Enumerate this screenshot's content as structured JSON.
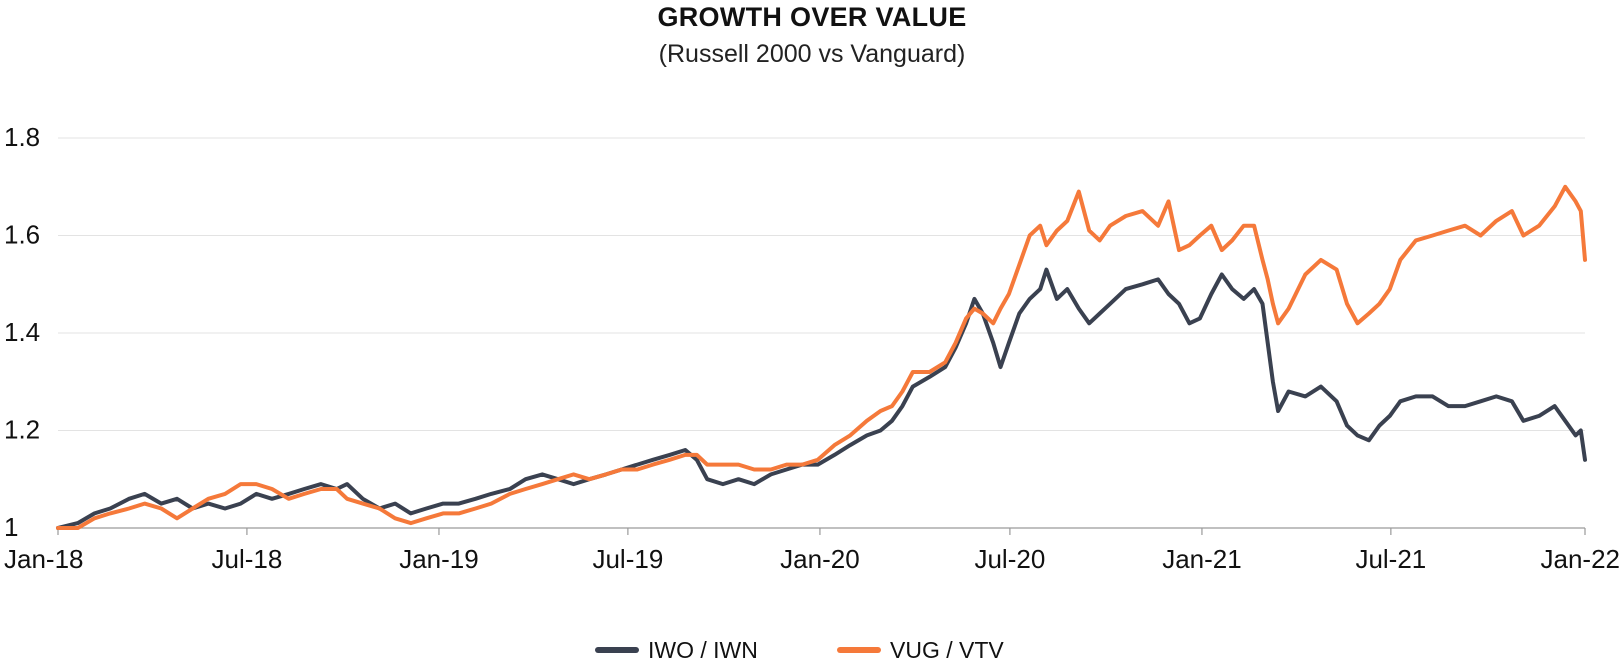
{
  "chart_data": {
    "type": "line",
    "title": "GROWTH OVER VALUE",
    "subtitle": "(Russell 2000 vs Vanguard)",
    "xlabel": "",
    "ylabel": "",
    "x_ticks": [
      "Jan-18",
      "Jul-18",
      "Jan-19",
      "Jul-19",
      "Jan-20",
      "Jul-20",
      "Jan-21",
      "Jul-21",
      "Jan-22"
    ],
    "y_ticks": [
      "1",
      "1.2",
      "1.4",
      "1.6",
      "1.8"
    ],
    "ylim": [
      1.0,
      1.8
    ],
    "xlim": [
      "2018-01-01",
      "2022-01-03"
    ],
    "grid": "horizontal",
    "legend_position": "bottom-center",
    "series": [
      {
        "name": "IWO / IWN",
        "color": "#3a4150",
        "points": [
          [
            "2018-01-01",
            1.0
          ],
          [
            "2018-01-20",
            1.01
          ],
          [
            "2018-02-05",
            1.03
          ],
          [
            "2018-02-20",
            1.04
          ],
          [
            "2018-03-10",
            1.06
          ],
          [
            "2018-03-25",
            1.07
          ],
          [
            "2018-04-10",
            1.05
          ],
          [
            "2018-04-25",
            1.06
          ],
          [
            "2018-05-10",
            1.04
          ],
          [
            "2018-05-25",
            1.05
          ],
          [
            "2018-06-10",
            1.04
          ],
          [
            "2018-06-25",
            1.05
          ],
          [
            "2018-07-10",
            1.07
          ],
          [
            "2018-07-25",
            1.06
          ],
          [
            "2018-08-10",
            1.07
          ],
          [
            "2018-08-25",
            1.08
          ],
          [
            "2018-09-10",
            1.09
          ],
          [
            "2018-09-25",
            1.08
          ],
          [
            "2018-10-05",
            1.09
          ],
          [
            "2018-10-20",
            1.06
          ],
          [
            "2018-11-05",
            1.04
          ],
          [
            "2018-11-20",
            1.05
          ],
          [
            "2018-12-05",
            1.03
          ],
          [
            "2018-12-20",
            1.04
          ],
          [
            "2019-01-05",
            1.05
          ],
          [
            "2019-01-20",
            1.05
          ],
          [
            "2019-02-05",
            1.06
          ],
          [
            "2019-02-20",
            1.07
          ],
          [
            "2019-03-10",
            1.08
          ],
          [
            "2019-03-25",
            1.1
          ],
          [
            "2019-04-10",
            1.11
          ],
          [
            "2019-04-25",
            1.1
          ],
          [
            "2019-05-10",
            1.09
          ],
          [
            "2019-05-25",
            1.1
          ],
          [
            "2019-06-10",
            1.11
          ],
          [
            "2019-06-25",
            1.12
          ],
          [
            "2019-07-10",
            1.13
          ],
          [
            "2019-07-25",
            1.14
          ],
          [
            "2019-08-10",
            1.15
          ],
          [
            "2019-08-25",
            1.16
          ],
          [
            "2019-09-05",
            1.14
          ],
          [
            "2019-09-15",
            1.1
          ],
          [
            "2019-09-30",
            1.09
          ],
          [
            "2019-10-15",
            1.1
          ],
          [
            "2019-10-30",
            1.09
          ],
          [
            "2019-11-15",
            1.11
          ],
          [
            "2019-11-30",
            1.12
          ],
          [
            "2019-12-15",
            1.13
          ],
          [
            "2019-12-30",
            1.13
          ],
          [
            "2020-01-15",
            1.15
          ],
          [
            "2020-01-30",
            1.17
          ],
          [
            "2020-02-15",
            1.19
          ],
          [
            "2020-02-28",
            1.2
          ],
          [
            "2020-03-10",
            1.22
          ],
          [
            "2020-03-20",
            1.25
          ],
          [
            "2020-03-30",
            1.29
          ],
          [
            "2020-04-15",
            1.31
          ],
          [
            "2020-04-30",
            1.33
          ],
          [
            "2020-05-10",
            1.37
          ],
          [
            "2020-05-20",
            1.42
          ],
          [
            "2020-05-28",
            1.47
          ],
          [
            "2020-06-05",
            1.44
          ],
          [
            "2020-06-15",
            1.38
          ],
          [
            "2020-06-22",
            1.33
          ],
          [
            "2020-06-30",
            1.38
          ],
          [
            "2020-07-10",
            1.44
          ],
          [
            "2020-07-20",
            1.47
          ],
          [
            "2020-07-30",
            1.49
          ],
          [
            "2020-08-05",
            1.53
          ],
          [
            "2020-08-15",
            1.47
          ],
          [
            "2020-08-25",
            1.49
          ],
          [
            "2020-09-05",
            1.45
          ],
          [
            "2020-09-15",
            1.42
          ],
          [
            "2020-09-25",
            1.44
          ],
          [
            "2020-10-05",
            1.46
          ],
          [
            "2020-10-20",
            1.49
          ],
          [
            "2020-11-05",
            1.5
          ],
          [
            "2020-11-20",
            1.51
          ],
          [
            "2020-11-30",
            1.48
          ],
          [
            "2020-12-10",
            1.46
          ],
          [
            "2020-12-20",
            1.42
          ],
          [
            "2020-12-30",
            1.43
          ],
          [
            "2021-01-10",
            1.48
          ],
          [
            "2021-01-20",
            1.52
          ],
          [
            "2021-01-30",
            1.49
          ],
          [
            "2021-02-10",
            1.47
          ],
          [
            "2021-02-20",
            1.49
          ],
          [
            "2021-02-28",
            1.46
          ],
          [
            "2021-03-05",
            1.38
          ],
          [
            "2021-03-10",
            1.3
          ],
          [
            "2021-03-15",
            1.24
          ],
          [
            "2021-03-25",
            1.28
          ],
          [
            "2021-04-10",
            1.27
          ],
          [
            "2021-04-25",
            1.29
          ],
          [
            "2021-05-10",
            1.26
          ],
          [
            "2021-05-20",
            1.21
          ],
          [
            "2021-05-30",
            1.19
          ],
          [
            "2021-06-10",
            1.18
          ],
          [
            "2021-06-20",
            1.21
          ],
          [
            "2021-06-30",
            1.23
          ],
          [
            "2021-07-10",
            1.26
          ],
          [
            "2021-07-25",
            1.27
          ],
          [
            "2021-08-10",
            1.27
          ],
          [
            "2021-08-25",
            1.25
          ],
          [
            "2021-09-10",
            1.25
          ],
          [
            "2021-09-25",
            1.26
          ],
          [
            "2021-10-10",
            1.27
          ],
          [
            "2021-10-25",
            1.26
          ],
          [
            "2021-11-05",
            1.22
          ],
          [
            "2021-11-20",
            1.23
          ],
          [
            "2021-12-05",
            1.25
          ],
          [
            "2021-12-15",
            1.22
          ],
          [
            "2021-12-25",
            1.19
          ],
          [
            "2021-12-30",
            1.2
          ],
          [
            "2022-01-03",
            1.14
          ]
        ]
      },
      {
        "name": "VUG / VTV",
        "color": "#f5793a",
        "points": [
          [
            "2018-01-01",
            1.0
          ],
          [
            "2018-01-20",
            1.0
          ],
          [
            "2018-02-05",
            1.02
          ],
          [
            "2018-02-20",
            1.03
          ],
          [
            "2018-03-10",
            1.04
          ],
          [
            "2018-03-25",
            1.05
          ],
          [
            "2018-04-10",
            1.04
          ],
          [
            "2018-04-25",
            1.02
          ],
          [
            "2018-05-10",
            1.04
          ],
          [
            "2018-05-25",
            1.06
          ],
          [
            "2018-06-10",
            1.07
          ],
          [
            "2018-06-25",
            1.09
          ],
          [
            "2018-07-10",
            1.09
          ],
          [
            "2018-07-25",
            1.08
          ],
          [
            "2018-08-10",
            1.06
          ],
          [
            "2018-08-25",
            1.07
          ],
          [
            "2018-09-10",
            1.08
          ],
          [
            "2018-09-25",
            1.08
          ],
          [
            "2018-10-05",
            1.06
          ],
          [
            "2018-10-20",
            1.05
          ],
          [
            "2018-11-05",
            1.04
          ],
          [
            "2018-11-20",
            1.02
          ],
          [
            "2018-12-05",
            1.01
          ],
          [
            "2018-12-20",
            1.02
          ],
          [
            "2019-01-05",
            1.03
          ],
          [
            "2019-01-20",
            1.03
          ],
          [
            "2019-02-05",
            1.04
          ],
          [
            "2019-02-20",
            1.05
          ],
          [
            "2019-03-10",
            1.07
          ],
          [
            "2019-03-25",
            1.08
          ],
          [
            "2019-04-10",
            1.09
          ],
          [
            "2019-04-25",
            1.1
          ],
          [
            "2019-05-10",
            1.11
          ],
          [
            "2019-05-25",
            1.1
          ],
          [
            "2019-06-10",
            1.11
          ],
          [
            "2019-06-25",
            1.12
          ],
          [
            "2019-07-10",
            1.12
          ],
          [
            "2019-07-25",
            1.13
          ],
          [
            "2019-08-10",
            1.14
          ],
          [
            "2019-08-25",
            1.15
          ],
          [
            "2019-09-05",
            1.15
          ],
          [
            "2019-09-15",
            1.13
          ],
          [
            "2019-09-30",
            1.13
          ],
          [
            "2019-10-15",
            1.13
          ],
          [
            "2019-10-30",
            1.12
          ],
          [
            "2019-11-15",
            1.12
          ],
          [
            "2019-11-30",
            1.13
          ],
          [
            "2019-12-15",
            1.13
          ],
          [
            "2019-12-30",
            1.14
          ],
          [
            "2020-01-15",
            1.17
          ],
          [
            "2020-01-30",
            1.19
          ],
          [
            "2020-02-15",
            1.22
          ],
          [
            "2020-02-28",
            1.24
          ],
          [
            "2020-03-10",
            1.25
          ],
          [
            "2020-03-20",
            1.28
          ],
          [
            "2020-03-30",
            1.32
          ],
          [
            "2020-04-15",
            1.32
          ],
          [
            "2020-04-30",
            1.34
          ],
          [
            "2020-05-10",
            1.38
          ],
          [
            "2020-05-20",
            1.43
          ],
          [
            "2020-05-28",
            1.45
          ],
          [
            "2020-06-05",
            1.44
          ],
          [
            "2020-06-15",
            1.42
          ],
          [
            "2020-06-22",
            1.45
          ],
          [
            "2020-06-30",
            1.48
          ],
          [
            "2020-07-10",
            1.54
          ],
          [
            "2020-07-20",
            1.6
          ],
          [
            "2020-07-30",
            1.62
          ],
          [
            "2020-08-05",
            1.58
          ],
          [
            "2020-08-15",
            1.61
          ],
          [
            "2020-08-25",
            1.63
          ],
          [
            "2020-09-05",
            1.69
          ],
          [
            "2020-09-15",
            1.61
          ],
          [
            "2020-09-25",
            1.59
          ],
          [
            "2020-10-05",
            1.62
          ],
          [
            "2020-10-20",
            1.64
          ],
          [
            "2020-11-05",
            1.65
          ],
          [
            "2020-11-20",
            1.62
          ],
          [
            "2020-11-30",
            1.67
          ],
          [
            "2020-12-10",
            1.57
          ],
          [
            "2020-12-20",
            1.58
          ],
          [
            "2020-12-30",
            1.6
          ],
          [
            "2021-01-10",
            1.62
          ],
          [
            "2021-01-20",
            1.57
          ],
          [
            "2021-01-30",
            1.59
          ],
          [
            "2021-02-10",
            1.62
          ],
          [
            "2021-02-20",
            1.62
          ],
          [
            "2021-02-28",
            1.55
          ],
          [
            "2021-03-05",
            1.51
          ],
          [
            "2021-03-10",
            1.46
          ],
          [
            "2021-03-15",
            1.42
          ],
          [
            "2021-03-25",
            1.45
          ],
          [
            "2021-04-10",
            1.52
          ],
          [
            "2021-04-25",
            1.55
          ],
          [
            "2021-05-10",
            1.53
          ],
          [
            "2021-05-20",
            1.46
          ],
          [
            "2021-05-30",
            1.42
          ],
          [
            "2021-06-10",
            1.44
          ],
          [
            "2021-06-20",
            1.46
          ],
          [
            "2021-06-30",
            1.49
          ],
          [
            "2021-07-10",
            1.55
          ],
          [
            "2021-07-25",
            1.59
          ],
          [
            "2021-08-10",
            1.6
          ],
          [
            "2021-08-25",
            1.61
          ],
          [
            "2021-09-10",
            1.62
          ],
          [
            "2021-09-25",
            1.6
          ],
          [
            "2021-10-10",
            1.63
          ],
          [
            "2021-10-25",
            1.65
          ],
          [
            "2021-11-05",
            1.6
          ],
          [
            "2021-11-20",
            1.62
          ],
          [
            "2021-12-05",
            1.66
          ],
          [
            "2021-12-15",
            1.7
          ],
          [
            "2021-12-25",
            1.67
          ],
          [
            "2021-12-30",
            1.65
          ],
          [
            "2022-01-03",
            1.55
          ]
        ]
      }
    ]
  }
}
